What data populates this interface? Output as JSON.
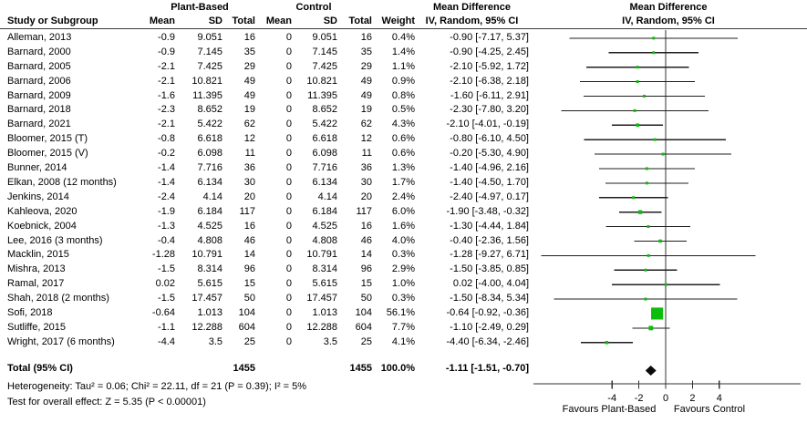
{
  "header": {
    "group_plant": "Plant-Based",
    "group_control": "Control",
    "mean_difference": "Mean Difference",
    "study_col": "Study or Subgroup",
    "mean_col": "Mean",
    "sd_col": "SD",
    "total_col": "Total",
    "weight_col": "Weight",
    "ci_col": "IV, Random, 95% CI"
  },
  "table": {
    "rows": [
      {
        "study": "Alleman, 2013",
        "mean1": "-0.9",
        "sd1": "9.051",
        "n1": "16",
        "mean2": "0",
        "sd2": "9.051",
        "n2": "16",
        "weight": "0.4%",
        "ci": "-0.90 [-7.17, 5.37]"
      },
      {
        "study": "Barnard, 2000",
        "mean1": "-0.9",
        "sd1": "7.145",
        "n1": "35",
        "mean2": "0",
        "sd2": "7.145",
        "n2": "35",
        "weight": "1.4%",
        "ci": "-0.90 [-4.25, 2.45]"
      },
      {
        "study": "Barnard, 2005",
        "mean1": "-2.1",
        "sd1": "7.425",
        "n1": "29",
        "mean2": "0",
        "sd2": "7.425",
        "n2": "29",
        "weight": "1.1%",
        "ci": "-2.10 [-5.92, 1.72]"
      },
      {
        "study": "Barnard, 2006",
        "mean1": "-2.1",
        "sd1": "10.821",
        "n1": "49",
        "mean2": "0",
        "sd2": "10.821",
        "n2": "49",
        "weight": "0.9%",
        "ci": "-2.10 [-6.38, 2.18]"
      },
      {
        "study": "Barnard, 2009",
        "mean1": "-1.6",
        "sd1": "11.395",
        "n1": "49",
        "mean2": "0",
        "sd2": "11.395",
        "n2": "49",
        "weight": "0.8%",
        "ci": "-1.60 [-6.11, 2.91]"
      },
      {
        "study": "Barnard, 2018",
        "mean1": "-2.3",
        "sd1": "8.652",
        "n1": "19",
        "mean2": "0",
        "sd2": "8.652",
        "n2": "19",
        "weight": "0.5%",
        "ci": "-2.30 [-7.80, 3.20]"
      },
      {
        "study": "Barnard, 2021",
        "mean1": "-2.1",
        "sd1": "5.422",
        "n1": "62",
        "mean2": "0",
        "sd2": "5.422",
        "n2": "62",
        "weight": "4.3%",
        "ci": "-2.10 [-4.01, -0.19]"
      },
      {
        "study": "Bloomer, 2015 (T)",
        "mean1": "-0.8",
        "sd1": "6.618",
        "n1": "12",
        "mean2": "0",
        "sd2": "6.618",
        "n2": "12",
        "weight": "0.6%",
        "ci": "-0.80 [-6.10, 4.50]"
      },
      {
        "study": "Bloomer, 2015 (V)",
        "mean1": "-0.2",
        "sd1": "6.098",
        "n1": "11",
        "mean2": "0",
        "sd2": "6.098",
        "n2": "11",
        "weight": "0.6%",
        "ci": "-0.20 [-5.30, 4.90]"
      },
      {
        "study": "Bunner, 2014",
        "mean1": "-1.4",
        "sd1": "7.716",
        "n1": "36",
        "mean2": "0",
        "sd2": "7.716",
        "n2": "36",
        "weight": "1.3%",
        "ci": "-1.40 [-4.96, 2.16]"
      },
      {
        "study": "Elkan, 2008 (12 months)",
        "mean1": "-1.4",
        "sd1": "6.134",
        "n1": "30",
        "mean2": "0",
        "sd2": "6.134",
        "n2": "30",
        "weight": "1.7%",
        "ci": "-1.40 [-4.50, 1.70]"
      },
      {
        "study": "Jenkins, 2014",
        "mean1": "-2.4",
        "sd1": "4.14",
        "n1": "20",
        "mean2": "0",
        "sd2": "4.14",
        "n2": "20",
        "weight": "2.4%",
        "ci": "-2.40 [-4.97, 0.17]"
      },
      {
        "study": "Kahleova, 2020",
        "mean1": "-1.9",
        "sd1": "6.184",
        "n1": "117",
        "mean2": "0",
        "sd2": "6.184",
        "n2": "117",
        "weight": "6.0%",
        "ci": "-1.90 [-3.48, -0.32]"
      },
      {
        "study": "Koebnick, 2004",
        "mean1": "-1.3",
        "sd1": "4.525",
        "n1": "16",
        "mean2": "0",
        "sd2": "4.525",
        "n2": "16",
        "weight": "1.6%",
        "ci": "-1.30 [-4.44, 1.84]"
      },
      {
        "study": "Lee, 2016 (3 months)",
        "mean1": "-0.4",
        "sd1": "4.808",
        "n1": "46",
        "mean2": "0",
        "sd2": "4.808",
        "n2": "46",
        "weight": "4.0%",
        "ci": "-0.40 [-2.36, 1.56]"
      },
      {
        "study": "Macklin, 2015",
        "mean1": "-1.28",
        "sd1": "10.791",
        "n1": "14",
        "mean2": "0",
        "sd2": "10.791",
        "n2": "14",
        "weight": "0.3%",
        "ci": "-1.28 [-9.27, 6.71]"
      },
      {
        "study": "Mishra, 2013",
        "mean1": "-1.5",
        "sd1": "8.314",
        "n1": "96",
        "mean2": "0",
        "sd2": "8.314",
        "n2": "96",
        "weight": "2.9%",
        "ci": "-1.50 [-3.85, 0.85]"
      },
      {
        "study": "Ramal, 2017",
        "mean1": "0.02",
        "sd1": "5.615",
        "n1": "15",
        "mean2": "0",
        "sd2": "5.615",
        "n2": "15",
        "weight": "1.0%",
        "ci": "0.02 [-4.00, 4.04]"
      },
      {
        "study": "Shah, 2018 (2 months)",
        "mean1": "-1.5",
        "sd1": "17.457",
        "n1": "50",
        "mean2": "0",
        "sd2": "17.457",
        "n2": "50",
        "weight": "0.3%",
        "ci": "-1.50 [-8.34, 5.34]"
      },
      {
        "study": "Sofi, 2018",
        "mean1": "-0.64",
        "sd1": "1.013",
        "n1": "104",
        "mean2": "0",
        "sd2": "1.013",
        "n2": "104",
        "weight": "56.1%",
        "ci": "-0.64 [-0.92, -0.36]"
      },
      {
        "study": "Sutliffe, 2015",
        "mean1": "-1.1",
        "sd1": "12.288",
        "n1": "604",
        "mean2": "0",
        "sd2": "12.288",
        "n2": "604",
        "weight": "7.7%",
        "ci": "-1.10 [-2.49, 0.29]"
      },
      {
        "study": "Wright, 2017 (6 months)",
        "mean1": "-4.4",
        "sd1": "3.5",
        "n1": "25",
        "mean2": "0",
        "sd2": "3.5",
        "n2": "25",
        "weight": "4.1%",
        "ci": "-4.40 [-6.34, -2.46]"
      }
    ]
  },
  "total": {
    "label": "Total (95% CI)",
    "n1": "1455",
    "n2": "1455",
    "weight": "100.0%",
    "ci": "-1.11 [-1.51, -0.70]"
  },
  "footnotes": {
    "heterogeneity": "Heterogeneity: Tau² = 0.06; Chi² = 22.11, df = 21 (P = 0.39); I² = 5%",
    "overall_effect": "Test for overall effect: Z = 5.35 (P < 0.00001)"
  },
  "chart_data": {
    "type": "scatter",
    "subtype": "forest-plot",
    "title": "Mean Difference",
    "subtitle": "IV, Random, 95% CI",
    "xlabel_left": "Favours Plant-Based",
    "xlabel_right": "Favours Control",
    "x_ticks": [
      -4,
      -2,
      0,
      2,
      4
    ],
    "xlim_visible": [
      -9.9,
      10.3
    ],
    "zero_line_x": 0,
    "grid": false,
    "marker_color": "#0cbd0c",
    "diamond_color": "#0a0a0a",
    "line_color": "#1f1f1f",
    "axis_color": "#333333",
    "points": [
      {
        "study": "Alleman, 2013",
        "est": -0.9,
        "lo": -7.17,
        "hi": 5.37,
        "weight_pct": 0.4
      },
      {
        "study": "Barnard, 2000",
        "est": -0.9,
        "lo": -4.25,
        "hi": 2.45,
        "weight_pct": 1.4
      },
      {
        "study": "Barnard, 2005",
        "est": -2.1,
        "lo": -5.92,
        "hi": 1.72,
        "weight_pct": 1.1
      },
      {
        "study": "Barnard, 2006",
        "est": -2.1,
        "lo": -6.38,
        "hi": 2.18,
        "weight_pct": 0.9
      },
      {
        "study": "Barnard, 2009",
        "est": -1.6,
        "lo": -6.11,
        "hi": 2.91,
        "weight_pct": 0.8
      },
      {
        "study": "Barnard, 2018",
        "est": -2.3,
        "lo": -7.8,
        "hi": 3.2,
        "weight_pct": 0.5
      },
      {
        "study": "Barnard, 2021",
        "est": -2.1,
        "lo": -4.01,
        "hi": -0.19,
        "weight_pct": 4.3
      },
      {
        "study": "Bloomer, 2015 (T)",
        "est": -0.8,
        "lo": -6.1,
        "hi": 4.5,
        "weight_pct": 0.6
      },
      {
        "study": "Bloomer, 2015 (V)",
        "est": -0.2,
        "lo": -5.3,
        "hi": 4.9,
        "weight_pct": 0.6
      },
      {
        "study": "Bunner, 2014",
        "est": -1.4,
        "lo": -4.96,
        "hi": 2.16,
        "weight_pct": 1.3
      },
      {
        "study": "Elkan, 2008 (12 months)",
        "est": -1.4,
        "lo": -4.5,
        "hi": 1.7,
        "weight_pct": 1.7
      },
      {
        "study": "Jenkins, 2014",
        "est": -2.4,
        "lo": -4.97,
        "hi": 0.17,
        "weight_pct": 2.4
      },
      {
        "study": "Kahleova, 2020",
        "est": -1.9,
        "lo": -3.48,
        "hi": -0.32,
        "weight_pct": 6.0
      },
      {
        "study": "Koebnick, 2004",
        "est": -1.3,
        "lo": -4.44,
        "hi": 1.84,
        "weight_pct": 1.6
      },
      {
        "study": "Lee, 2016 (3 months)",
        "est": -0.4,
        "lo": -2.36,
        "hi": 1.56,
        "weight_pct": 4.0
      },
      {
        "study": "Macklin, 2015",
        "est": -1.28,
        "lo": -9.27,
        "hi": 6.71,
        "weight_pct": 0.3
      },
      {
        "study": "Mishra, 2013",
        "est": -1.5,
        "lo": -3.85,
        "hi": 0.85,
        "weight_pct": 2.9
      },
      {
        "study": "Ramal, 2017",
        "est": 0.02,
        "lo": -4.0,
        "hi": 4.04,
        "weight_pct": 1.0
      },
      {
        "study": "Shah, 2018 (2 months)",
        "est": -1.5,
        "lo": -8.34,
        "hi": 5.34,
        "weight_pct": 0.3
      },
      {
        "study": "Sofi, 2018",
        "est": -0.64,
        "lo": -0.92,
        "hi": -0.36,
        "weight_pct": 56.1
      },
      {
        "study": "Sutliffe, 2015",
        "est": -1.1,
        "lo": -2.49,
        "hi": 0.29,
        "weight_pct": 7.7
      },
      {
        "study": "Wright, 2017 (6 months)",
        "est": -4.4,
        "lo": -6.34,
        "hi": -2.46,
        "weight_pct": 4.1
      }
    ],
    "total": {
      "label": "Total (95% CI)",
      "est": -1.11,
      "lo": -1.51,
      "hi": -0.7,
      "weight_pct": 100.0
    }
  }
}
